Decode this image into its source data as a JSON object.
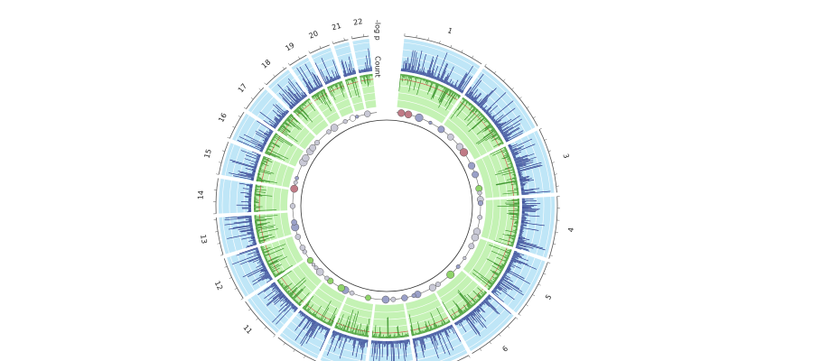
{
  "chromosome_labels": [
    {
      "label": "1"
    },
    {
      "label": "3"
    },
    {
      "label": "4"
    },
    {
      "label": "5"
    },
    {
      "label": "6"
    },
    {
      "label": "11"
    },
    {
      "label": "12"
    },
    {
      "label": "13"
    },
    {
      "label": "14"
    },
    {
      "label": "15"
    },
    {
      "label": "16"
    },
    {
      "label": "17"
    },
    {
      "label": "18"
    },
    {
      "label": "19"
    },
    {
      "label": "20"
    },
    {
      "label": "21"
    },
    {
      "label": "22"
    }
  ],
  "track_labels": {
    "outer": "-log p",
    "middle": "Count"
  }
}
